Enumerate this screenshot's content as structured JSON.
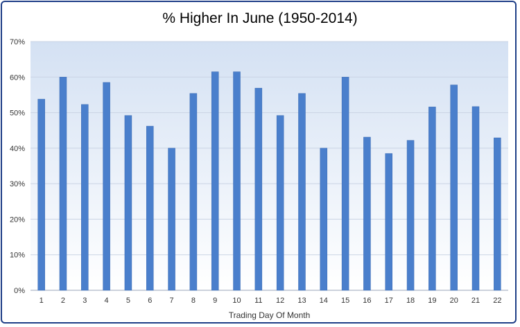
{
  "chart_data": {
    "type": "bar",
    "title": "% Higher In June (1950-2014)",
    "xlabel": "Trading Day Of Month",
    "ylabel": "",
    "ylim": [
      0,
      70
    ],
    "yticks": [
      "0%",
      "10%",
      "20%",
      "30%",
      "40%",
      "50%",
      "60%",
      "70%"
    ],
    "grid": true,
    "categories": [
      "1",
      "2",
      "3",
      "4",
      "5",
      "6",
      "7",
      "8",
      "9",
      "10",
      "11",
      "12",
      "13",
      "14",
      "15",
      "16",
      "17",
      "18",
      "19",
      "20",
      "21",
      "22"
    ],
    "values": [
      53.8,
      60.0,
      52.3,
      58.5,
      49.2,
      46.2,
      40.0,
      55.4,
      61.5,
      61.5,
      56.9,
      49.2,
      55.4,
      40.0,
      60.0,
      43.1,
      38.5,
      42.2,
      51.6,
      57.8,
      51.7,
      42.9
    ],
    "colors": {
      "bar": "#4a7fcc",
      "bar_edge": "#3a6ab3",
      "grid": "#c9d3e3",
      "bg_top": "#d4e1f3",
      "bg_bottom": "#ffffff"
    }
  }
}
